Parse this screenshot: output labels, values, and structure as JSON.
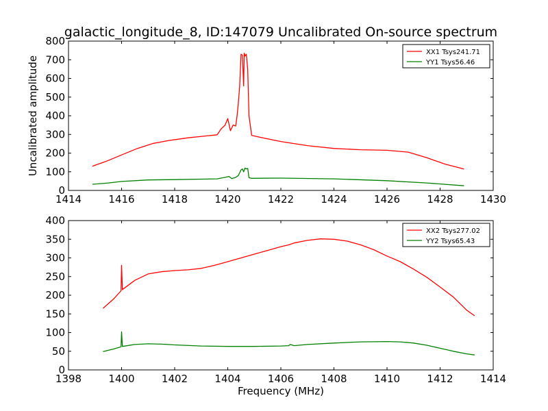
{
  "chart_data": [
    {
      "type": "line",
      "title": "galactic_longitude_8, ID:147079 Uncalibrated On-source spectrum",
      "xlabel": "",
      "ylabel": "Uncalibrated amplitude",
      "xlim": [
        1414,
        1430
      ],
      "ylim": [
        0,
        800
      ],
      "xticks": [
        "1414",
        "1416",
        "1418",
        "1420",
        "1422",
        "1424",
        "1426",
        "1428",
        "1430"
      ],
      "yticks": [
        "0",
        "100",
        "200",
        "300",
        "400",
        "500",
        "600",
        "700",
        "800"
      ],
      "legend_position": "top-right",
      "series": [
        {
          "name": "XX1 Tsys241.71",
          "color": "#ff0000",
          "x": [
            1414.9,
            1415.4,
            1416,
            1416.6,
            1417.2,
            1417.8,
            1418.5,
            1419.2,
            1419.6,
            1419.75,
            1419.9,
            1420.0,
            1420.1,
            1420.2,
            1420.3,
            1420.35,
            1420.4,
            1420.45,
            1420.5,
            1420.55,
            1420.6,
            1420.62,
            1420.65,
            1420.7,
            1420.75,
            1420.8,
            1420.9,
            1421.2,
            1422,
            1423,
            1424,
            1425,
            1426,
            1426.8,
            1427.5,
            1428.2,
            1428.9
          ],
          "y": [
            130,
            155,
            190,
            225,
            252,
            268,
            282,
            292,
            298,
            330,
            350,
            385,
            320,
            350,
            345,
            400,
            470,
            560,
            730,
            725,
            560,
            735,
            720,
            730,
            650,
            400,
            295,
            285,
            262,
            240,
            225,
            218,
            215,
            205,
            175,
            140,
            115
          ]
        },
        {
          "name": "YY1 Tsys56.46",
          "color": "#008000",
          "x": [
            1414.9,
            1415.5,
            1416,
            1417,
            1418,
            1419.6,
            1419.9,
            1420.05,
            1420.15,
            1420.3,
            1420.4,
            1420.5,
            1420.55,
            1420.6,
            1420.65,
            1420.7,
            1420.75,
            1420.8,
            1420.9,
            1422,
            1424,
            1426,
            1427.5,
            1428.9
          ],
          "y": [
            33,
            40,
            48,
            56,
            58,
            62,
            70,
            75,
            63,
            70,
            80,
            110,
            115,
            100,
            120,
            115,
            118,
            68,
            65,
            66,
            62,
            52,
            40,
            25
          ]
        }
      ]
    },
    {
      "type": "line",
      "title": "",
      "xlabel": "Frequency (MHz)",
      "ylabel": "",
      "xlim": [
        1398,
        1414
      ],
      "ylim": [
        0,
        400
      ],
      "xticks": [
        "1398",
        "1400",
        "1402",
        "1404",
        "1406",
        "1408",
        "1410",
        "1412",
        "1414"
      ],
      "yticks": [
        "0",
        "50",
        "100",
        "150",
        "200",
        "250",
        "300",
        "350",
        "400"
      ],
      "legend_position": "top-right",
      "series": [
        {
          "name": "XX2 Tsys277.02",
          "color": "#ff0000",
          "x": [
            1399.3,
            1399.7,
            1399.98,
            1400.0,
            1400.03,
            1400.5,
            1401,
            1401.5,
            1402,
            1402.5,
            1403,
            1403.5,
            1404,
            1404.5,
            1405,
            1405.5,
            1406,
            1406.3,
            1406.5,
            1407,
            1407.5,
            1408,
            1408.5,
            1409,
            1409.5,
            1410,
            1410.5,
            1411,
            1411.5,
            1412,
            1412.5,
            1413,
            1413.3
          ],
          "y": [
            165,
            190,
            212,
            280,
            215,
            240,
            257,
            263,
            266,
            268,
            272,
            280,
            290,
            300,
            310,
            320,
            330,
            335,
            340,
            347,
            351,
            350,
            345,
            335,
            322,
            305,
            290,
            270,
            248,
            222,
            195,
            160,
            145
          ]
        },
        {
          "name": "YY2 Tsys65.43",
          "color": "#008000",
          "x": [
            1399.3,
            1399.7,
            1399.98,
            1400.0,
            1400.03,
            1400.5,
            1401,
            1401.5,
            1402,
            1403,
            1404,
            1405,
            1406,
            1406.3,
            1406.35,
            1406.5,
            1407,
            1408,
            1409,
            1410,
            1410.5,
            1411,
            1411.5,
            1412,
            1412.5,
            1413,
            1413.3
          ],
          "y": [
            49,
            56,
            62,
            102,
            63,
            68,
            70,
            69,
            67,
            64,
            63,
            63,
            64,
            65,
            68,
            65,
            68,
            72,
            75,
            76,
            75,
            72,
            66,
            58,
            50,
            43,
            40
          ]
        }
      ]
    }
  ]
}
